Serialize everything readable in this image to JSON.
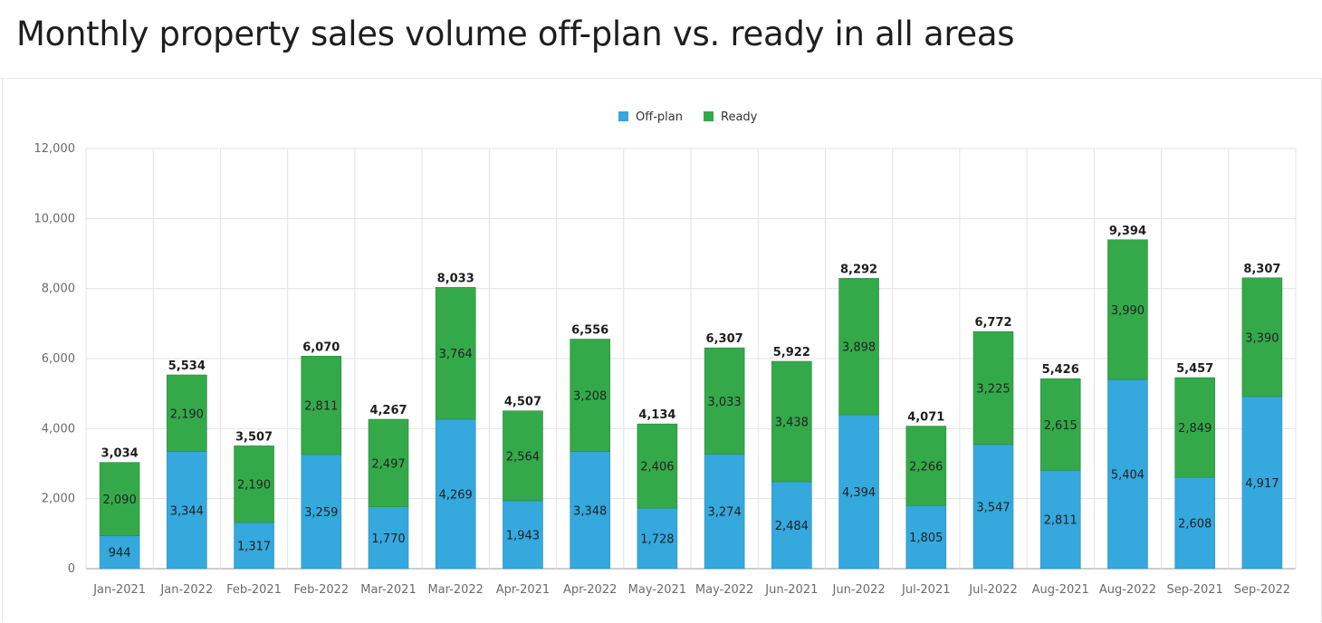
{
  "title": "Monthly property sales volume off-plan vs. ready in all areas",
  "colors": {
    "offplan": "#35a8dd",
    "ready": "#34a94a",
    "grid": "#e3e3e3",
    "axis": "#9a9a9a"
  },
  "chart_data": {
    "type": "bar",
    "stacked": true,
    "categories": [
      "Jan-2021",
      "Jan-2022",
      "Feb-2021",
      "Feb-2022",
      "Mar-2021",
      "Mar-2022",
      "Apr-2021",
      "Apr-2022",
      "May-2021",
      "May-2022",
      "Jun-2021",
      "Jun-2022",
      "Jul-2021",
      "Jul-2022",
      "Aug-2021",
      "Aug-2022",
      "Sep-2021",
      "Sep-2022"
    ],
    "series": [
      {
        "name": "Off-plan",
        "color": "#35a8dd",
        "values": [
          944,
          3344,
          1317,
          3259,
          1770,
          4269,
          1943,
          3348,
          1728,
          3274,
          2484,
          4394,
          1805,
          3547,
          2811,
          5404,
          2608,
          4917
        ],
        "labels": [
          "944",
          "3,344",
          "1,317",
          "3,259",
          "1,770",
          "4,269",
          "1,943",
          "3,348",
          "1,728",
          "3,274",
          "2,484",
          "4,394",
          "1,805",
          "3,547",
          "2,811",
          "5,404",
          "2,608",
          "4,917"
        ]
      },
      {
        "name": "Ready",
        "color": "#34a94a",
        "values": [
          2090,
          2190,
          2190,
          2811,
          2497,
          3764,
          2564,
          3208,
          2406,
          3033,
          3438,
          3898,
          2266,
          3225,
          2615,
          3990,
          2849,
          3390
        ],
        "labels": [
          "2,090",
          "2,190",
          "2,190",
          "2,811",
          "2,497",
          "3,764",
          "2,564",
          "3,208",
          "2,406",
          "3,033",
          "3,438",
          "3,898",
          "2,266",
          "3,225",
          "2,615",
          "3,990",
          "2,849",
          "3,390"
        ]
      }
    ],
    "totals": [
      3034,
      5534,
      3507,
      6070,
      4267,
      8033,
      4507,
      6556,
      4134,
      6307,
      5922,
      8292,
      4071,
      6772,
      5426,
      9394,
      5457,
      8307
    ],
    "total_labels": [
      "3,034",
      "5,534",
      "3,507",
      "6,070",
      "4,267",
      "8,033",
      "4,507",
      "6,556",
      "4,134",
      "6,307",
      "5,922",
      "8,292",
      "4,071",
      "6,772",
      "5,426",
      "9,394",
      "5,457",
      "8,307"
    ],
    "ylim": [
      0,
      12000
    ],
    "yticks": [
      0,
      2000,
      4000,
      6000,
      8000,
      10000,
      12000
    ],
    "ytick_labels": [
      "0",
      "2,000",
      "4,000",
      "6,000",
      "8,000",
      "10,000",
      "12,000"
    ],
    "legend_position": "top-center",
    "grid": true
  }
}
